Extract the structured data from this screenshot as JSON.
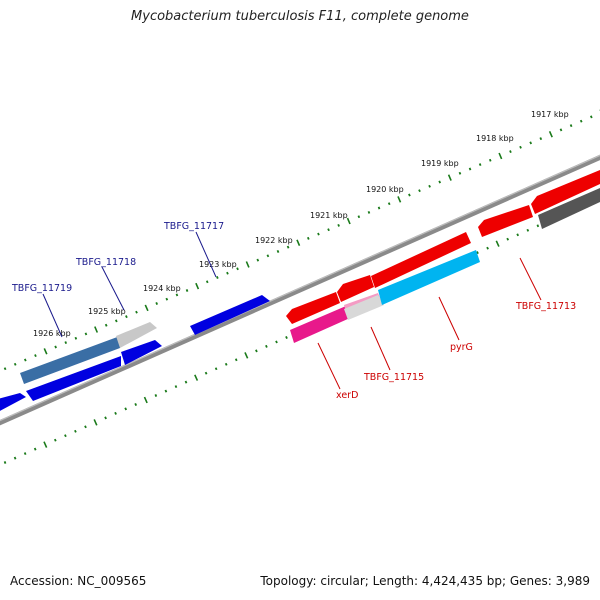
{
  "title": "Mycobacterium tuberculosis F11, complete genome",
  "footer": {
    "accession": "Accession: NC_009565",
    "topology": "Topology: circular; Length: 4,424,435 bp; Genes: 3,989"
  },
  "colors": {
    "backbone": "#808080",
    "tick": "#1a7a1a",
    "forward_label": "#1a1a8c",
    "reverse_label": "#cc0000"
  },
  "scale_labels": [
    "1917 kbp",
    "1918 kbp",
    "1919 kbp",
    "1920 kbp",
    "1921 kbp",
    "1922 kbp",
    "1923 kbp",
    "1924 kbp",
    "1925 kbp",
    "1926 kbp"
  ],
  "genes": [
    {
      "name": "TBFG_11719",
      "strand": "forward",
      "color": "#3a6ea5"
    },
    {
      "name": "TBFG_11718",
      "strand": "forward",
      "color": "#0000e0"
    },
    {
      "name": "TBFG_11717",
      "strand": "forward",
      "color": "#0000e0"
    },
    {
      "name": "xerD",
      "strand": "reverse",
      "color": "#e8198b"
    },
    {
      "name": "TBFG_11715",
      "strand": "reverse",
      "color": "#f0f0f0"
    },
    {
      "name": "pyrG",
      "strand": "reverse",
      "color": "#00b4f0"
    },
    {
      "name": "TBFG_11713",
      "strand": "reverse",
      "color": "#ee0000"
    }
  ]
}
